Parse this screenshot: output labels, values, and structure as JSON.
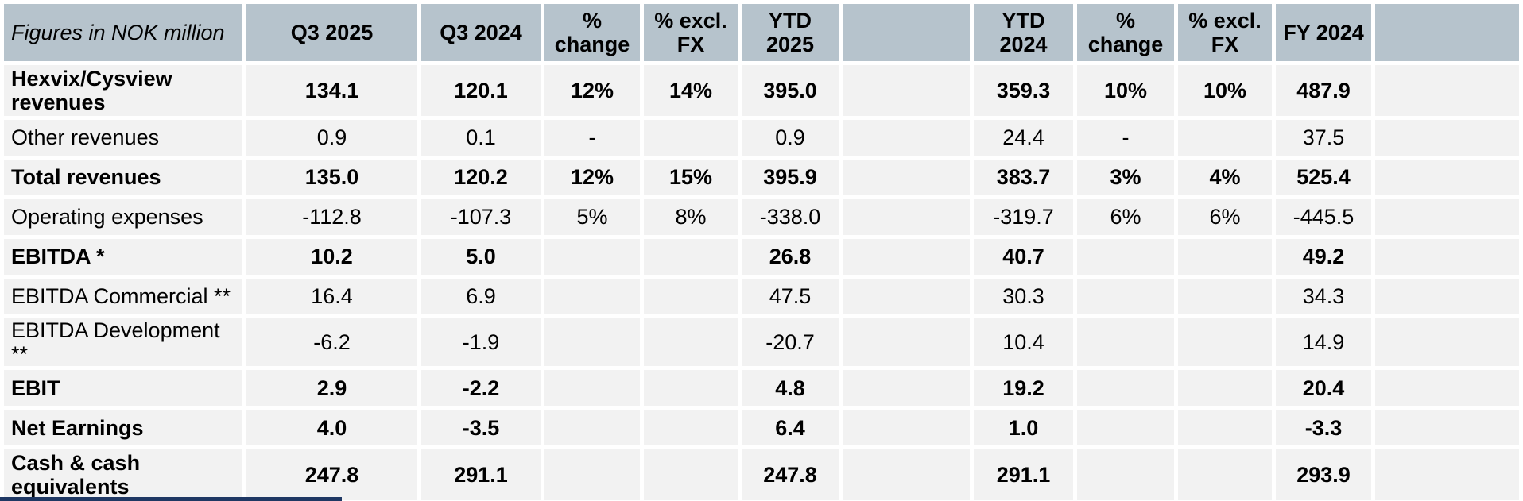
{
  "table": {
    "corner_label": "Figures in NOK million",
    "columns": [
      "Q3 2025",
      "Q3 2024",
      "%\nchange",
      "% excl.\nFX",
      "YTD\n2025",
      "YTD\n2024",
      "%\nchange",
      "% excl.\nFX",
      "FY 2024"
    ],
    "rows": [
      {
        "label": "Hexvix/Cysview\nrevenues",
        "bold": true,
        "values": [
          "134.1",
          "120.1",
          "12%",
          "14%",
          "395.0",
          "359.3",
          "10%",
          "10%",
          "487.9"
        ]
      },
      {
        "label": "Other revenues",
        "bold": false,
        "values": [
          "0.9",
          "0.1",
          "-",
          "",
          "0.9",
          "24.4",
          "-",
          "",
          "37.5"
        ]
      },
      {
        "label": "Total revenues",
        "bold": true,
        "values": [
          "135.0",
          "120.2",
          "12%",
          "15%",
          "395.9",
          "383.7",
          "3%",
          "4%",
          "525.4"
        ]
      },
      {
        "label": "Operating expenses",
        "bold": false,
        "values": [
          "-112.8",
          "-107.3",
          "5%",
          "8%",
          "-338.0",
          "-319.7",
          "6%",
          "6%",
          "-445.5"
        ]
      },
      {
        "label": "EBITDA *",
        "bold": true,
        "values": [
          "10.2",
          "5.0",
          "",
          "",
          "26.8",
          "40.7",
          "",
          "",
          "49.2"
        ]
      },
      {
        "label": "EBITDA Commercial **",
        "bold": false,
        "values": [
          "16.4",
          "6.9",
          "",
          "",
          "47.5",
          "30.3",
          "",
          "",
          "34.3"
        ]
      },
      {
        "label": "EBITDA Development **",
        "bold": false,
        "values": [
          "-6.2",
          "-1.9",
          "",
          "",
          "-20.7",
          "10.4",
          "",
          "",
          "14.9"
        ]
      },
      {
        "label": "EBIT",
        "bold": true,
        "values": [
          "2.9",
          "-2.2",
          "",
          "",
          "4.8",
          "19.2",
          "",
          "",
          "20.4"
        ]
      },
      {
        "label": "Net Earnings",
        "bold": true,
        "values": [
          "4.0",
          "-3.5",
          "",
          "",
          "6.4",
          "1.0",
          "",
          "",
          "-3.3"
        ]
      },
      {
        "label": "Cash & cash\nequivalents",
        "bold": true,
        "values": [
          "247.8",
          "291.1",
          "",
          "",
          "247.8",
          "291.1",
          "",
          "",
          "293.9"
        ]
      }
    ],
    "colors": {
      "header_bg": "#b6c3cc",
      "cell_bg": "#f2f2f2",
      "text": "#000000",
      "accent_bar": "#1f3864"
    }
  }
}
